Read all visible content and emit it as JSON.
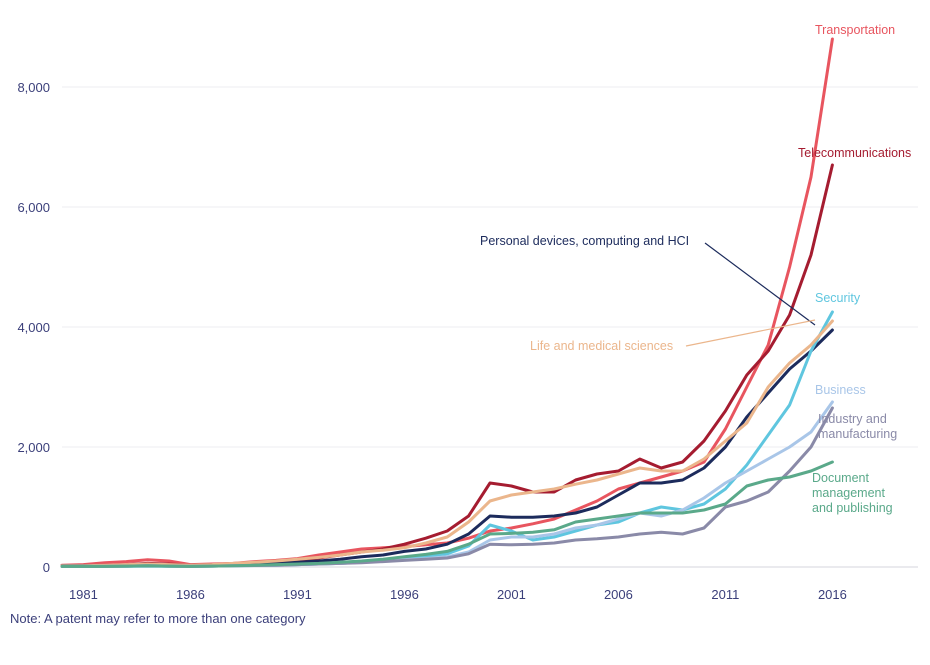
{
  "note": "Note: A patent may refer to more than one category",
  "chart_data": {
    "type": "line",
    "title": "",
    "xlabel": "",
    "ylabel": "",
    "xlim": [
      1980,
      2020
    ],
    "ylim": [
      0,
      9000
    ],
    "x_ticks": [
      1981,
      1986,
      1991,
      1996,
      2001,
      2006,
      2011,
      2016
    ],
    "x_tick_labels": [
      "1981",
      "1986",
      "1991",
      "1996",
      "2001",
      "2006",
      "2011",
      "2016"
    ],
    "y_ticks": [
      0,
      2000,
      4000,
      6000,
      8000
    ],
    "y_tick_labels": [
      "0",
      "2,000",
      "4,000",
      "6,000",
      "8,000"
    ],
    "grid": "horizontal",
    "legend": "inline labels at line ends",
    "x": [
      1980,
      1981,
      1982,
      1983,
      1984,
      1985,
      1986,
      1987,
      1988,
      1989,
      1990,
      1991,
      1992,
      1993,
      1994,
      1995,
      1996,
      1997,
      1998,
      1999,
      2000,
      2001,
      2002,
      2003,
      2004,
      2005,
      2006,
      2007,
      2008,
      2009,
      2010,
      2011,
      2012,
      2013,
      2014,
      2015,
      2016
    ],
    "series": [
      {
        "name": "Transportation",
        "color": "#e8555f",
        "label": [
          "Transportation"
        ],
        "values": [
          30,
          40,
          70,
          90,
          120,
          100,
          40,
          50,
          60,
          90,
          110,
          140,
          200,
          250,
          300,
          320,
          340,
          370,
          400,
          480,
          600,
          650,
          720,
          800,
          950,
          1100,
          1300,
          1400,
          1500,
          1600,
          1750,
          2300,
          3000,
          3700,
          5000,
          6500,
          8800
        ]
      },
      {
        "name": "Telecommunications",
        "color": "#a51c30",
        "label": [
          "Telecommunications"
        ],
        "values": [
          20,
          20,
          30,
          40,
          60,
          50,
          30,
          40,
          50,
          70,
          80,
          100,
          150,
          200,
          250,
          300,
          380,
          480,
          600,
          850,
          1400,
          1350,
          1250,
          1250,
          1450,
          1550,
          1600,
          1800,
          1650,
          1750,
          2100,
          2600,
          3200,
          3600,
          4200,
          5200,
          6700
        ]
      },
      {
        "name": "Personal devices, computing and HCI",
        "color": "#1c2b5c",
        "label": [
          "Personal devices, computing and HCI"
        ],
        "values": [
          20,
          20,
          20,
          30,
          50,
          30,
          20,
          30,
          40,
          50,
          60,
          80,
          100,
          130,
          170,
          200,
          260,
          300,
          380,
          550,
          850,
          830,
          830,
          850,
          900,
          1000,
          1200,
          1400,
          1400,
          1450,
          1650,
          2000,
          2500,
          2900,
          3300,
          3600,
          3950
        ]
      },
      {
        "name": "Security",
        "color": "#5fc6df",
        "label": [
          "Security"
        ],
        "values": [
          10,
          10,
          10,
          10,
          15,
          10,
          10,
          15,
          20,
          25,
          30,
          40,
          50,
          60,
          80,
          100,
          140,
          180,
          220,
          350,
          700,
          600,
          450,
          500,
          600,
          700,
          750,
          900,
          1000,
          950,
          1050,
          1300,
          1700,
          2200,
          2700,
          3600,
          4250
        ]
      },
      {
        "name": "Life and medical sciences",
        "color": "#ebb68c",
        "label": [
          "Life and medical sciences"
        ],
        "values": [
          20,
          20,
          30,
          40,
          50,
          40,
          30,
          40,
          60,
          80,
          100,
          130,
          160,
          200,
          250,
          280,
          320,
          400,
          500,
          750,
          1100,
          1200,
          1250,
          1300,
          1380,
          1450,
          1550,
          1650,
          1600,
          1600,
          1800,
          2100,
          2400,
          3000,
          3400,
          3700,
          4100
        ]
      },
      {
        "name": "Business",
        "color": "#a9c6e8",
        "label": [
          "Business"
        ],
        "values": [
          10,
          10,
          10,
          15,
          20,
          15,
          10,
          15,
          20,
          25,
          30,
          40,
          50,
          60,
          80,
          100,
          120,
          140,
          170,
          250,
          450,
          500,
          500,
          550,
          650,
          700,
          800,
          900,
          850,
          950,
          1150,
          1400,
          1600,
          1800,
          2000,
          2250,
          2750
        ]
      },
      {
        "name": "Industry and manufacturing",
        "color": "#8a8aa8",
        "label": [
          "Industry and",
          "manufacturing"
        ],
        "values": [
          10,
          10,
          10,
          15,
          20,
          15,
          10,
          15,
          20,
          25,
          30,
          40,
          50,
          60,
          70,
          90,
          110,
          130,
          150,
          220,
          380,
          370,
          380,
          400,
          450,
          470,
          500,
          550,
          580,
          550,
          650,
          1000,
          1100,
          1250,
          1600,
          2000,
          2650
        ]
      },
      {
        "name": "Document management and publishing",
        "color": "#5aa98a",
        "label": [
          "Document",
          "management",
          "and publishing"
        ],
        "values": [
          10,
          10,
          10,
          15,
          20,
          15,
          10,
          15,
          20,
          30,
          40,
          50,
          60,
          80,
          100,
          130,
          170,
          210,
          260,
          380,
          550,
          560,
          580,
          620,
          750,
          800,
          850,
          900,
          900,
          900,
          950,
          1050,
          1350,
          1450,
          1500,
          1600,
          1750
        ]
      }
    ]
  }
}
